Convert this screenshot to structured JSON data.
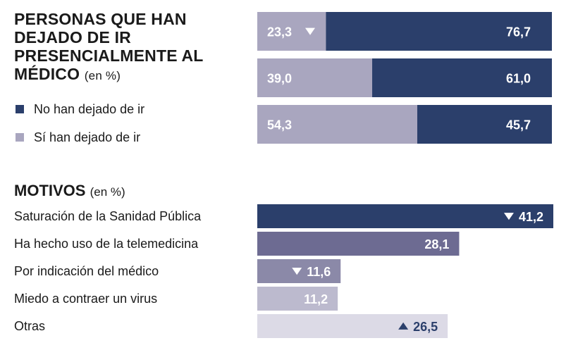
{
  "header": {
    "title": "PERSONAS QUE HAN DEJADO DE IR PRESENCIALMENTE AL MÉDICO",
    "unit": "(en %)"
  },
  "legend": [
    {
      "label": "No han dejado de ir",
      "color": "#2b3f6b"
    },
    {
      "label": "Sí han dejado de ir",
      "color": "#a9a6bf"
    }
  ],
  "motivos": {
    "title": "MOTIVOS",
    "unit": "(en %)"
  },
  "chart_data": [
    {
      "type": "bar",
      "stacked": true,
      "orientation": "horizontal",
      "title": "PERSONAS QUE HAN DEJADO DE IR PRESENCIALMENTE AL MÉDICO (en %)",
      "series": [
        {
          "name": "Sí han dejado de ir",
          "values": [
            23.3,
            39.0,
            54.3
          ],
          "labels": [
            "23,3",
            "39,0",
            "54,3"
          ],
          "color": "#a9a6bf",
          "markers": [
            "down",
            "",
            ""
          ]
        },
        {
          "name": "No han dejado de ir",
          "values": [
            76.7,
            61.0,
            45.7
          ],
          "labels": [
            "76,7",
            "61,0",
            "45,7"
          ],
          "color": "#2b3f6b"
        }
      ],
      "xlim": [
        0,
        100
      ]
    },
    {
      "type": "bar",
      "orientation": "horizontal",
      "title": "MOTIVOS (en %)",
      "categories": [
        "Saturación de la Sanidad Pública",
        "Ha hecho uso de la telemedicina",
        "Por indicación del médico",
        "Miedo a contraer un virus",
        "Otras"
      ],
      "values": [
        41.2,
        28.1,
        11.6,
        11.2,
        26.5
      ],
      "labels": [
        "41,2",
        "28,1",
        "11,6",
        "11,2",
        "26,5"
      ],
      "markers": [
        "down",
        "",
        "down",
        "",
        "up"
      ],
      "colors": [
        "#2b3f6b",
        "#6d6b92",
        "#8b89a8",
        "#bcbace",
        "#dcdae6"
      ],
      "text_colors": [
        "#ffffff",
        "#ffffff",
        "#ffffff",
        "#ffffff",
        "#2b3f6b"
      ]
    }
  ]
}
